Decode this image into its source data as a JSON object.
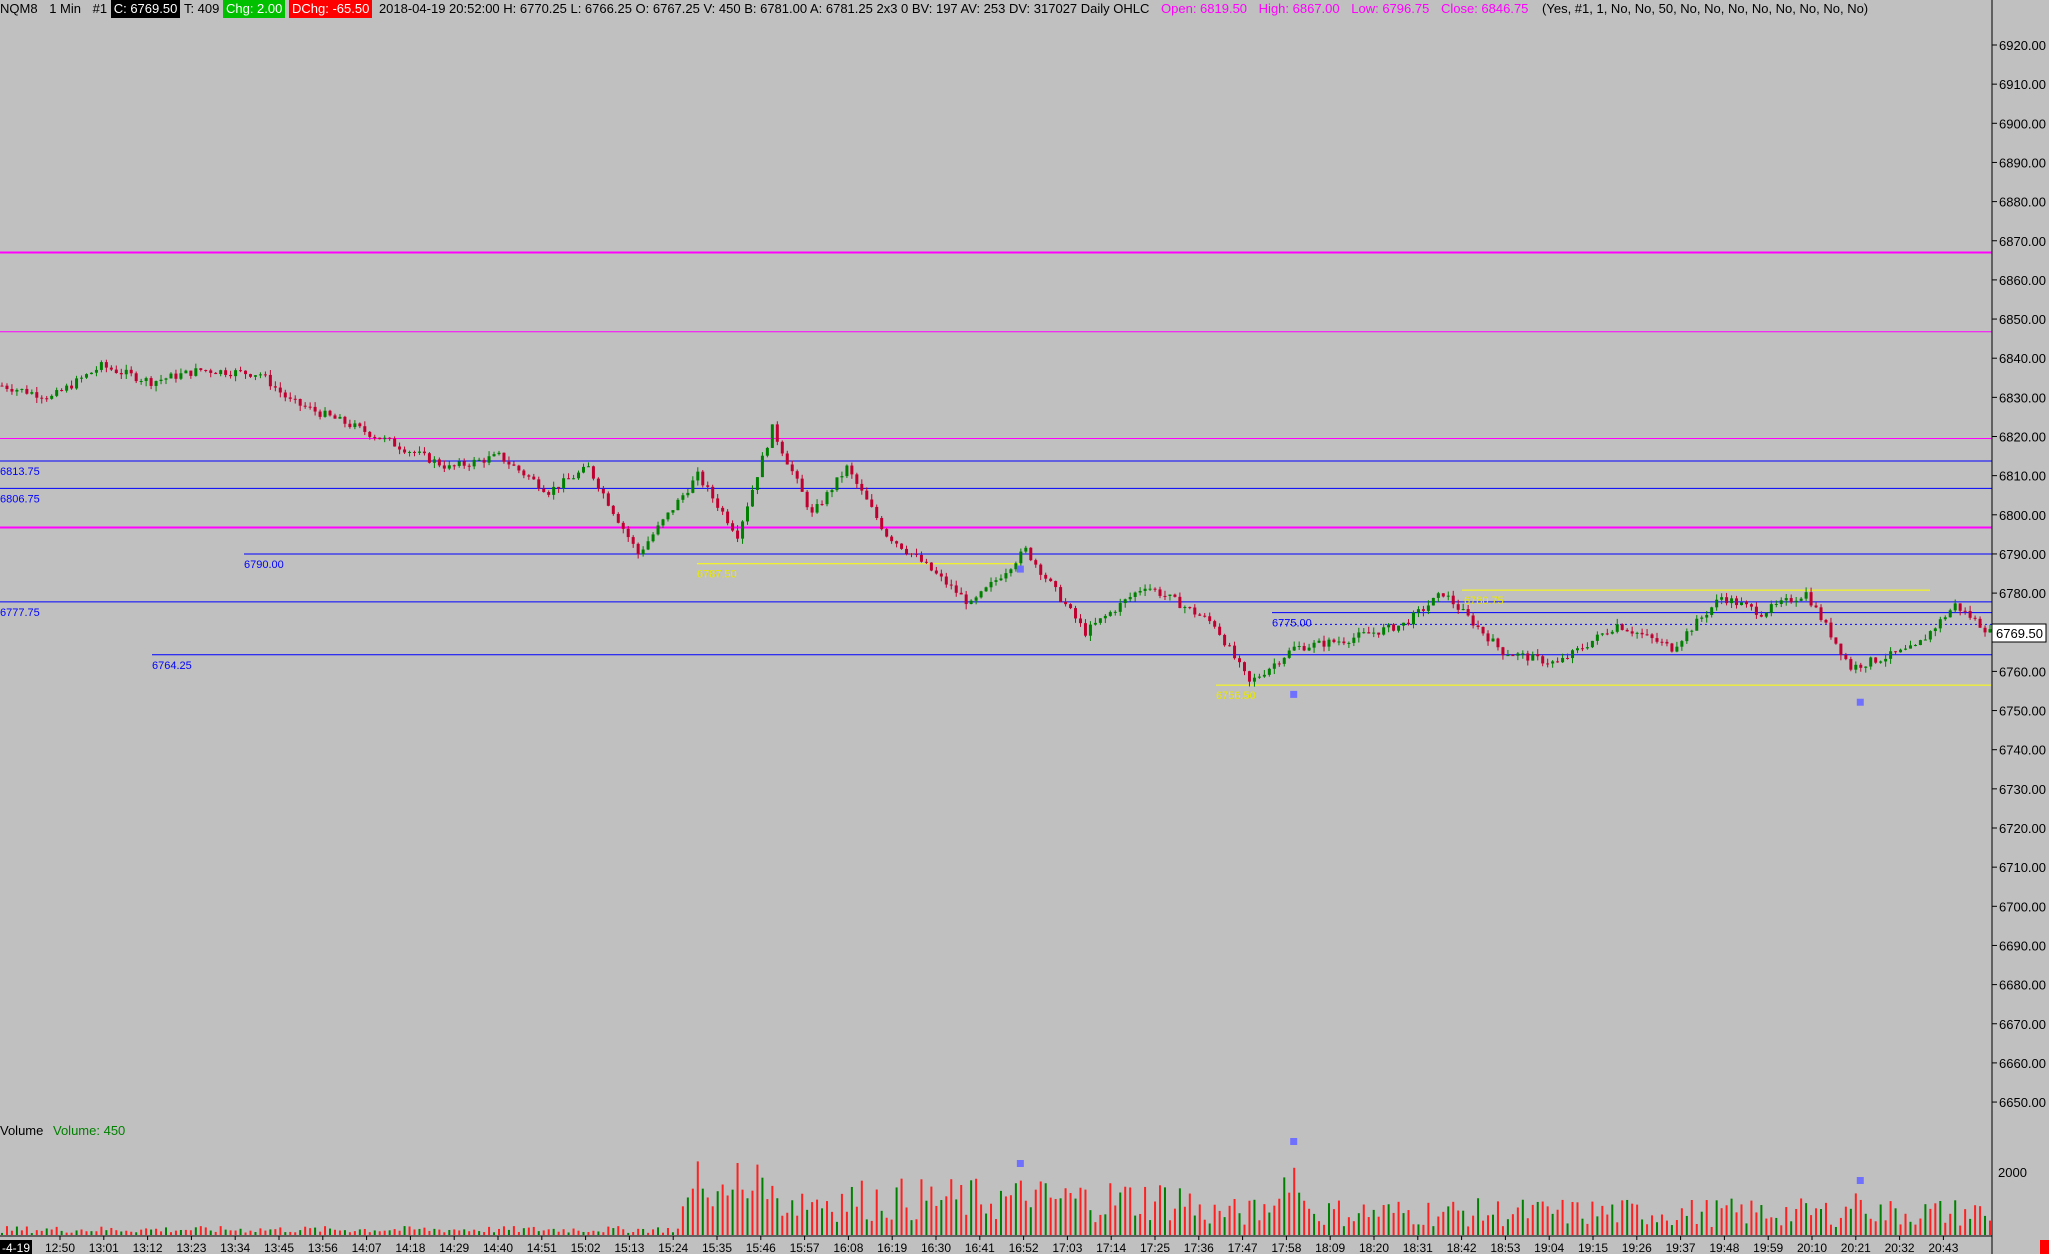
{
  "header": {
    "symbol": "NQM8",
    "interval": "1 Min",
    "chart_num": "#1",
    "close_label": "C: 6769.50",
    "ticks_label": "T: 409",
    "chg_label": "Chg: 2.00",
    "dchg_label": "DChg: -65.50",
    "bar_info": "2018-04-19 20:52:00 H: 6770.25 L: 6766.25 O: 6767.25 V: 450 B: 6781.00 A: 6781.25 2x3 0 BV: 197 AV: 253 DV: 317027 Daily OHLC",
    "open_label": "Open: 6819.50",
    "high_label": "High: 6867.00",
    "low_label": "Low: 6796.75",
    "close_daily_label": "Close: 6846.75",
    "params": "(Yes, #1, 1, No, No, 50, No, No, No, No, No, No, No, No)"
  },
  "volume_panel": {
    "title": "Volume",
    "value_label": "Volume: 450",
    "scale_label": "2000"
  },
  "date_label": "-4-19",
  "colors": {
    "background": "#c0c0c0",
    "up": "#008000",
    "down": "#c00030",
    "level_blue": "#0000ff",
    "level_magenta": "#ff00ff",
    "level_yellow": "#ffff00",
    "marker": "#7070ff"
  },
  "chart_data": {
    "type": "candlestick",
    "symbol": "NQM8",
    "interval": "1 Min",
    "y_range": [
      6641,
      6925
    ],
    "y_ticks": [
      "6920.00",
      "6910.00",
      "6900.00",
      "6890.00",
      "6880.00",
      "6870.00",
      "6860.00",
      "6850.00",
      "6840.00",
      "6830.00",
      "6820.00",
      "6810.00",
      "6800.00",
      "6790.00",
      "6780.00",
      "6770.00",
      "6760.00",
      "6750.00",
      "6740.00",
      "6730.00",
      "6720.00",
      "6710.00",
      "6700.00",
      "6690.00",
      "6680.00",
      "6670.00",
      "6660.00",
      "6650.00"
    ],
    "x_ticks": [
      "12:50",
      "13:01",
      "13:12",
      "13:23",
      "13:34",
      "13:45",
      "13:56",
      "14:07",
      "14:18",
      "14:29",
      "14:40",
      "14:51",
      "15:02",
      "15:13",
      "15:24",
      "15:35",
      "15:46",
      "15:57",
      "16:08",
      "16:19",
      "16:30",
      "16:41",
      "16:52",
      "17:03",
      "17:14",
      "17:25",
      "17:36",
      "17:47",
      "17:58",
      "18:09",
      "18:20",
      "18:31",
      "18:42",
      "18:53",
      "19:04",
      "19:15",
      "19:26",
      "19:37",
      "19:48",
      "19:59",
      "20:10",
      "20:21",
      "20:32",
      "20:43"
    ],
    "last_price_label": "6769.50",
    "price_path": [
      [
        0,
        6833
      ],
      [
        10,
        6830
      ],
      [
        20,
        6838
      ],
      [
        30,
        6834
      ],
      [
        40,
        6837
      ],
      [
        52,
        6836
      ],
      [
        58,
        6829
      ],
      [
        70,
        6823
      ],
      [
        90,
        6812
      ],
      [
        100,
        6815
      ],
      [
        110,
        6806
      ],
      [
        118,
        6812
      ],
      [
        128,
        6790
      ],
      [
        140,
        6810
      ],
      [
        148,
        6795
      ],
      [
        155,
        6822
      ],
      [
        163,
        6800
      ],
      [
        170,
        6812
      ],
      [
        178,
        6795
      ],
      [
        185,
        6788
      ],
      [
        195,
        6777
      ],
      [
        206,
        6791
      ],
      [
        218,
        6770
      ],
      [
        230,
        6782
      ],
      [
        236,
        6778
      ],
      [
        244,
        6772
      ],
      [
        251,
        6757
      ],
      [
        260,
        6766
      ],
      [
        270,
        6768
      ],
      [
        282,
        6772
      ],
      [
        290,
        6780
      ],
      [
        302,
        6765
      ],
      [
        313,
        6762
      ],
      [
        325,
        6772
      ],
      [
        336,
        6766
      ],
      [
        346,
        6779
      ],
      [
        354,
        6775
      ],
      [
        363,
        6780
      ],
      [
        372,
        6761
      ],
      [
        385,
        6766
      ],
      [
        393,
        6777
      ],
      [
        400,
        6770
      ]
    ],
    "horizontal_levels": [
      {
        "price": 6867.0,
        "color": "#ff00ff"
      },
      {
        "price": 6846.75,
        "color": "#ff00ff"
      },
      {
        "price": 6819.5,
        "color": "#ff00ff"
      },
      {
        "price": 6813.75,
        "color": "#0000ff",
        "label": "6813.75"
      },
      {
        "price": 6806.75,
        "color": "#0000ff",
        "label": "6806.75"
      },
      {
        "price": 6796.75,
        "color": "#ff00ff"
      },
      {
        "price": 6790.0,
        "color": "#0000ff",
        "label": "6790.00"
      },
      {
        "price": 6787.5,
        "color": "#ffff00",
        "label": "6787.50"
      },
      {
        "price": 6777.75,
        "color": "#0000ff",
        "label": "6777.75"
      },
      {
        "price": 6775.0,
        "color": "#0000ff",
        "label": "6775.00"
      },
      {
        "price": 6764.25,
        "color": "#0000ff",
        "label": "6764.25"
      },
      {
        "price": 6780.75,
        "color": "#ffff00",
        "label": "6780.75"
      },
      {
        "price": 6756.5,
        "color": "#ffff00",
        "label": "6756.50"
      }
    ],
    "markers": [
      {
        "bar": 205,
        "price": 6786
      },
      {
        "bar": 260,
        "price": 6754
      },
      {
        "bar": 374,
        "price": 6752
      }
    ],
    "volume": {
      "scale_tick": 2000,
      "last": 450,
      "spikes": [
        [
          140,
          2300
        ],
        [
          148,
          2250
        ],
        [
          152,
          2200
        ],
        [
          205,
          1700
        ],
        [
          258,
          1800
        ],
        [
          260,
          2100
        ],
        [
          373,
          1300
        ]
      ]
    }
  }
}
